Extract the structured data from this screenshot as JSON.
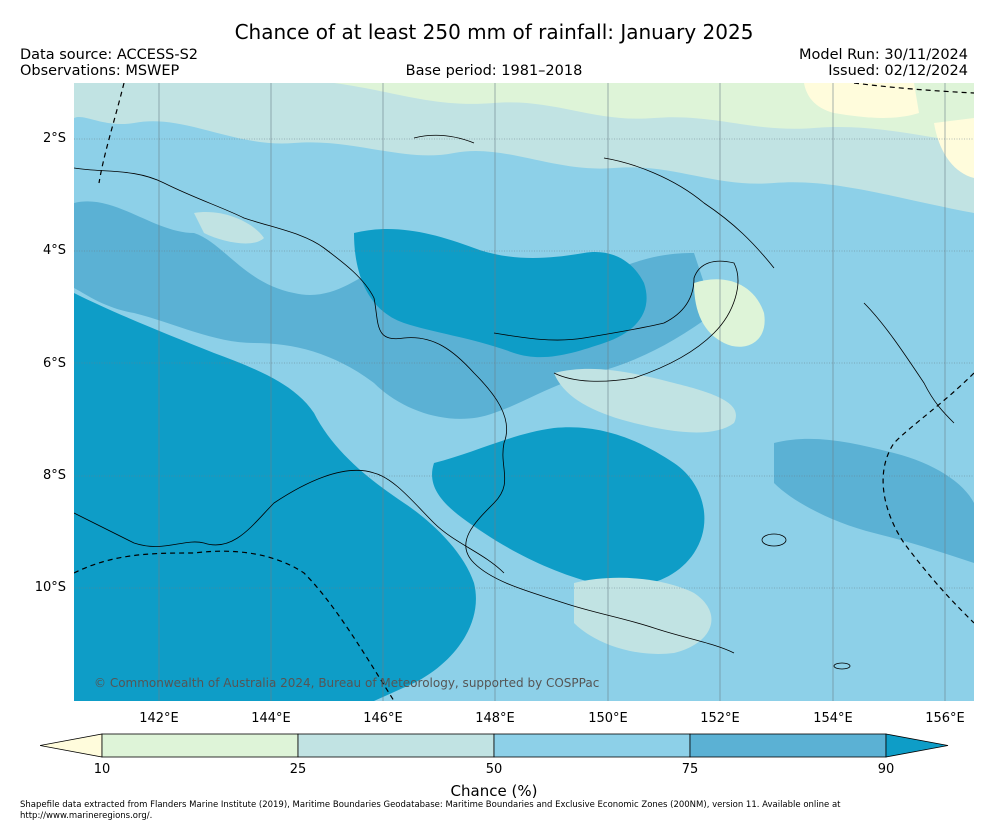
{
  "header": {
    "title": "Chance of at least 250 mm of rainfall: January 2025",
    "data_source": "Data source: ACCESS-S2",
    "observations": "Observations: MSWEP",
    "base_period": "Base period: 1981–2018",
    "model_run": "Model Run: 30/11/2024",
    "issued": "Issued: 02/12/2024"
  },
  "map": {
    "lat_labels": [
      "2°S",
      "4°S",
      "6°S",
      "8°S",
      "10°S"
    ],
    "lon_labels": [
      "142°E",
      "144°E",
      "146°E",
      "148°E",
      "150°E",
      "152°E",
      "154°E",
      "156°E"
    ],
    "copyright": "© Commonwealth of Australia 2024, Bureau of Meteorology, supported by COSPPac"
  },
  "legend": {
    "title": "Chance (%)",
    "ticks": [
      "10",
      "25",
      "50",
      "75",
      "90"
    ],
    "colors": {
      "below_10": "#fffcdc",
      "10_25": "#def4d8",
      "25_50": "#c1e3e3",
      "50_75": "#8dd0e8",
      "75_90": "#5bb1d4",
      "above_90": "#0e9dc7"
    }
  },
  "footnote": "Shapefile data extracted from Flanders Marine Institute (2019), Maritime Boundaries Geodatabase: Maritime Boundaries and Exclusive Economic Zones (200NM), version 11. Available online at http://www.marineregions.org/."
}
